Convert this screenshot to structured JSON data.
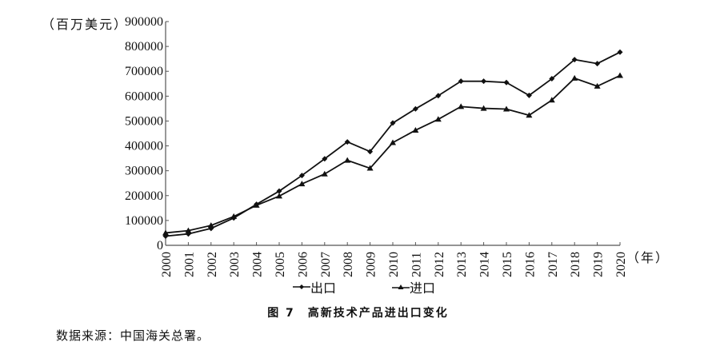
{
  "chart_data": {
    "type": "line",
    "title": "高新技术产品进出口变化",
    "figure_label": "图 7",
    "xlabel": "（年）",
    "ylabel": "（百万美元）",
    "ylim": [
      0,
      900000
    ],
    "yticks": [
      0,
      100000,
      200000,
      300000,
      400000,
      500000,
      600000,
      700000,
      800000,
      900000
    ],
    "grid": false,
    "legend_position": "bottom",
    "x": [
      "2000",
      "2001",
      "2002",
      "2003",
      "2004",
      "2005",
      "2006",
      "2007",
      "2008",
      "2009",
      "2010",
      "2011",
      "2012",
      "2013",
      "2014",
      "2015",
      "2016",
      "2017",
      "2018",
      "2019",
      "2020"
    ],
    "series": [
      {
        "name": "出口",
        "marker": "diamond",
        "values": [
          37000,
          46000,
          68000,
          110000,
          165000,
          218000,
          281000,
          348000,
          416000,
          377000,
          492000,
          549000,
          602000,
          660000,
          660000,
          655000,
          603000,
          670000,
          747000,
          731000,
          777000
        ]
      },
      {
        "name": "进口",
        "marker": "triangle",
        "values": [
          50000,
          59000,
          80000,
          116000,
          161000,
          198000,
          247000,
          287000,
          342000,
          310000,
          413000,
          463000,
          507000,
          558000,
          551000,
          548000,
          523000,
          584000,
          672000,
          640000,
          683000
        ]
      }
    ]
  },
  "labels": {
    "unit": "（百万美元）",
    "year_unit": "（年）",
    "caption": "图 7　高新技术产品进出口变化",
    "source": "数据来源：中国海关总署。",
    "legend_export": "出口",
    "legend_import": "进口"
  }
}
